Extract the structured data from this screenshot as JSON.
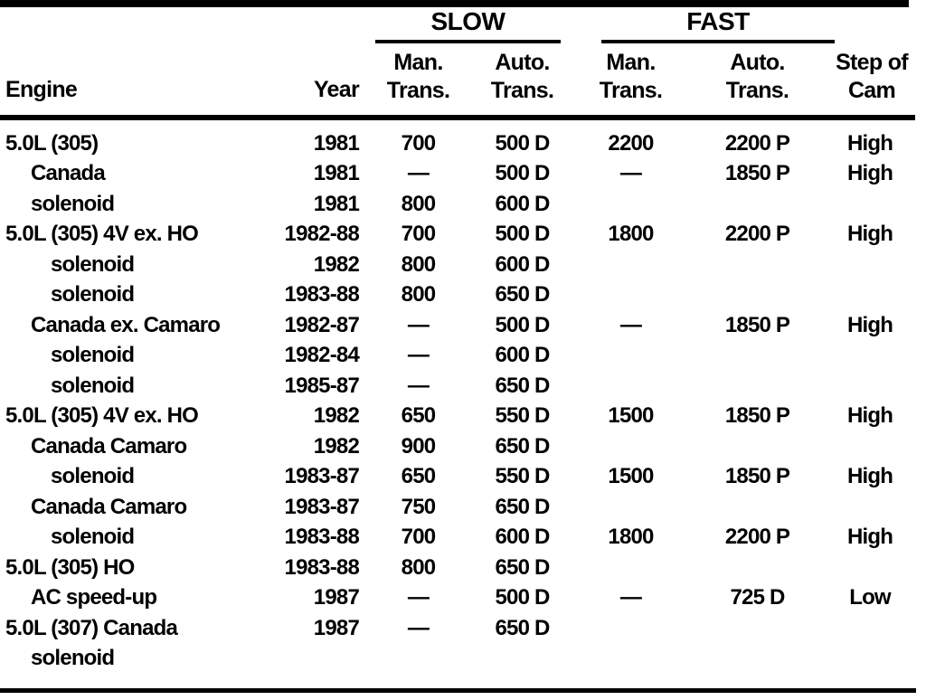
{
  "table": {
    "groups": {
      "slow": "SLOW",
      "fast": "FAST"
    },
    "headers": {
      "engine": "Engine",
      "year": "Year",
      "man": "Man.",
      "auto": "Auto.",
      "trans": "Trans.",
      "step_line1": "Step of",
      "step_line2": "Cam"
    },
    "rows": [
      {
        "engine": "5.0L (305)",
        "indent": 0,
        "year": "1981",
        "slow_man": "700",
        "slow_auto": "500 D",
        "fast_man": "2200",
        "fast_auto": "2200 P",
        "step": "High"
      },
      {
        "engine": "Canada",
        "indent": 1,
        "year": "1981",
        "slow_man": "—",
        "slow_auto": "500 D",
        "fast_man": "—",
        "fast_auto": "1850 P",
        "step": "High"
      },
      {
        "engine": "solenoid",
        "indent": 1,
        "year": "1981",
        "slow_man": "800",
        "slow_auto": "600 D",
        "fast_man": "",
        "fast_auto": "",
        "step": ""
      },
      {
        "engine": "5.0L (305) 4V ex. HO",
        "indent": 0,
        "year": "1982-88",
        "slow_man": "700",
        "slow_auto": "500 D",
        "fast_man": "1800",
        "fast_auto": "2200 P",
        "step": "High"
      },
      {
        "engine": "solenoid",
        "indent": 2,
        "year": "1982",
        "slow_man": "800",
        "slow_auto": "600 D",
        "fast_man": "",
        "fast_auto": "",
        "step": ""
      },
      {
        "engine": "solenoid",
        "indent": 2,
        "year": "1983-88",
        "slow_man": "800",
        "slow_auto": "650 D",
        "fast_man": "",
        "fast_auto": "",
        "step": ""
      },
      {
        "engine": "Canada ex. Camaro",
        "indent": 1,
        "year": "1982-87",
        "slow_man": "—",
        "slow_auto": "500 D",
        "fast_man": "—",
        "fast_auto": "1850 P",
        "step": "High"
      },
      {
        "engine": "solenoid",
        "indent": 2,
        "year": "1982-84",
        "slow_man": "—",
        "slow_auto": "600 D",
        "fast_man": "",
        "fast_auto": "",
        "step": ""
      },
      {
        "engine": "solenoid",
        "indent": 2,
        "year": "1985-87",
        "slow_man": "—",
        "slow_auto": "650 D",
        "fast_man": "",
        "fast_auto": "",
        "step": ""
      },
      {
        "engine": "5.0L (305) 4V ex. HO",
        "indent": 0,
        "year": "1982",
        "slow_man": "650",
        "slow_auto": "550 D",
        "fast_man": "1500",
        "fast_auto": "1850 P",
        "step": "High"
      },
      {
        "engine": "Canada Camaro",
        "indent": 1,
        "year": "1982",
        "slow_man": "900",
        "slow_auto": "650 D",
        "fast_man": "",
        "fast_auto": "",
        "step": ""
      },
      {
        "engine": "solenoid",
        "indent": 2,
        "year": "1983-87",
        "slow_man": "650",
        "slow_auto": "550 D",
        "fast_man": "1500",
        "fast_auto": "1850 P",
        "step": "High"
      },
      {
        "engine": "Canada Camaro",
        "indent": 1,
        "year": "1983-87",
        "slow_man": "750",
        "slow_auto": "650 D",
        "fast_man": "",
        "fast_auto": "",
        "step": ""
      },
      {
        "engine": "solenoid",
        "indent": 2,
        "year": "1983-88",
        "slow_man": "700",
        "slow_auto": "600 D",
        "fast_man": "1800",
        "fast_auto": "2200 P",
        "step": "High"
      },
      {
        "engine": "5.0L (305) HO",
        "indent": 0,
        "year": "1983-88",
        "slow_man": "800",
        "slow_auto": "650 D",
        "fast_man": "",
        "fast_auto": "",
        "step": ""
      },
      {
        "engine": "AC speed-up",
        "indent": 1,
        "year": "1987",
        "slow_man": "—",
        "slow_auto": "500 D",
        "fast_man": "—",
        "fast_auto": "725 D",
        "step": "Low"
      },
      {
        "engine": "5.0L (307) Canada",
        "indent": 0,
        "year": "1987",
        "slow_man": "—",
        "slow_auto": "650 D",
        "fast_man": "",
        "fast_auto": "",
        "step": ""
      },
      {
        "engine": "solenoid",
        "indent": 1,
        "year": "",
        "slow_man": "",
        "slow_auto": "",
        "fast_man": "",
        "fast_auto": "",
        "step": ""
      }
    ]
  }
}
